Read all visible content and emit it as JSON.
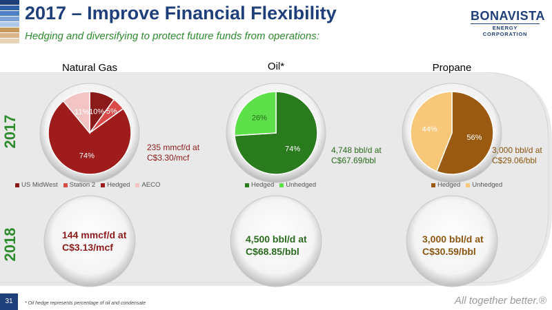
{
  "header": {
    "title": "2017 – Improve Financial Flexibility",
    "subtitle": "Hedging and diversifying to protect future funds from operations:",
    "stripe_colors": [
      "#1f3f7a",
      "#2e5fa6",
      "#4f7fc4",
      "#7ea2d6",
      "#b0c8e8",
      "#c79a5c",
      "#d9b488",
      "#e8d2b5"
    ]
  },
  "logo": {
    "word": "BONAVISTA",
    "sub": "ENERGY CORPORATION"
  },
  "years": {
    "y2017": "2017",
    "y2018": "2018"
  },
  "columns": {
    "gas": {
      "title": "Natural Gas",
      "note_2017_line1": "235 mmcf/d at",
      "note_2017_line2": "C$3.30/mcf",
      "note_2018_line1": "144 mmcf/d at",
      "note_2018_line2": "C$3.13/mcf"
    },
    "oil": {
      "title": "Oil*",
      "note_2017_line1": "4,748 bbl/d at",
      "note_2017_line2": "C$67.69/bbl",
      "note_2018_line1": "4,500 bbl/d at",
      "note_2018_line2": "C$68.85/bbl"
    },
    "propane": {
      "title": "Propane",
      "note_2017_line1": "3,000 bbl/d at",
      "note_2017_line2": "C$29.06/bbl",
      "note_2018_line1": "3,000 bbl/d at",
      "note_2018_line2": "C$30.59/bbl"
    }
  },
  "chart_data": [
    {
      "type": "pie",
      "title": "Natural Gas",
      "categories": [
        "US MidWest",
        "Station 2",
        "Hedged",
        "AECO"
      ],
      "values": [
        10,
        5,
        74,
        11
      ],
      "labels": [
        "10%",
        "5%",
        "74%",
        "11%"
      ],
      "colors": [
        "#8b1a1a",
        "#d94a4a",
        "#9e1c1c",
        "#f2c4c4"
      ]
    },
    {
      "type": "pie",
      "title": "Oil*",
      "categories": [
        "Hedged",
        "Unhedged"
      ],
      "values": [
        74,
        26
      ],
      "labels": [
        "74%",
        "26%"
      ],
      "colors": [
        "#2a7a1e",
        "#5ee04a"
      ]
    },
    {
      "type": "pie",
      "title": "Propane",
      "categories": [
        "Hedged",
        "Unhedged"
      ],
      "values": [
        56,
        44
      ],
      "labels": [
        "56%",
        "44%"
      ],
      "colors": [
        "#9a5a12",
        "#f7c77a"
      ]
    }
  ],
  "footer": {
    "page_number": "31",
    "footnote": "* Oil hedge represents percentage of oil and condensate",
    "tagline": "All together better.®"
  }
}
